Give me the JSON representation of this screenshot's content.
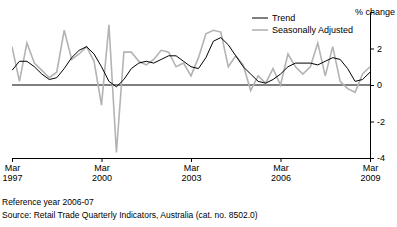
{
  "chart_data": {
    "type": "line",
    "y_label": "% change",
    "categories": [
      "Mar 1997",
      null,
      null,
      null,
      null,
      null,
      null,
      null,
      null,
      null,
      null,
      null,
      "Mar 2000",
      null,
      null,
      null,
      null,
      null,
      null,
      null,
      null,
      null,
      null,
      null,
      "Mar 2003",
      null,
      null,
      null,
      null,
      null,
      null,
      null,
      null,
      null,
      null,
      null,
      "Mar 2006",
      null,
      null,
      null,
      null,
      null,
      null,
      null,
      null,
      null,
      null,
      null,
      "Mar 2009"
    ],
    "series": [
      {
        "name": "Trend",
        "color": "#000000",
        "values": [
          0.8,
          1.3,
          1.3,
          1.0,
          0.6,
          0.3,
          0.4,
          0.9,
          1.5,
          1.9,
          2.1,
          1.7,
          1.0,
          0.2,
          -0.1,
          0.3,
          0.9,
          1.2,
          1.3,
          1.2,
          1.4,
          1.6,
          1.6,
          1.3,
          1.0,
          0.9,
          1.5,
          2.4,
          2.6,
          2.2,
          1.6,
          1.0,
          0.6,
          0.2,
          0.1,
          0.3,
          0.6,
          1.0,
          1.2,
          1.2,
          1.2,
          1.1,
          1.3,
          1.5,
          1.4,
          0.9,
          0.2,
          0.3,
          0.7
        ]
      },
      {
        "name": "Seasonally Adjusted",
        "color": "#b3b3b3",
        "values": [
          2.1,
          0.2,
          2.3,
          1.2,
          0.8,
          0.4,
          0.7,
          3.0,
          1.4,
          1.7,
          2.1,
          1.3,
          -1.1,
          3.3,
          -3.7,
          1.8,
          1.8,
          1.3,
          1.1,
          1.4,
          1.9,
          1.8,
          1.0,
          1.2,
          0.5,
          1.5,
          2.8,
          3.0,
          2.9,
          1.0,
          1.6,
          1.1,
          -0.3,
          0.5,
          0.1,
          0.9,
          0.0,
          1.7,
          1.0,
          0.6,
          1.0,
          2.3,
          0.5,
          2.1,
          0.2,
          -0.2,
          -0.4,
          0.6,
          1.0
        ]
      }
    ],
    "ylim": [
      -4,
      4
    ],
    "yticks": [
      -4,
      -2,
      0,
      2
    ],
    "legend": "top-right",
    "annotations": [
      "Reference year 2006-07",
      "Source: Retail Trade Quarterly Indicators, Australia (cat. no. 8502.0)"
    ]
  }
}
